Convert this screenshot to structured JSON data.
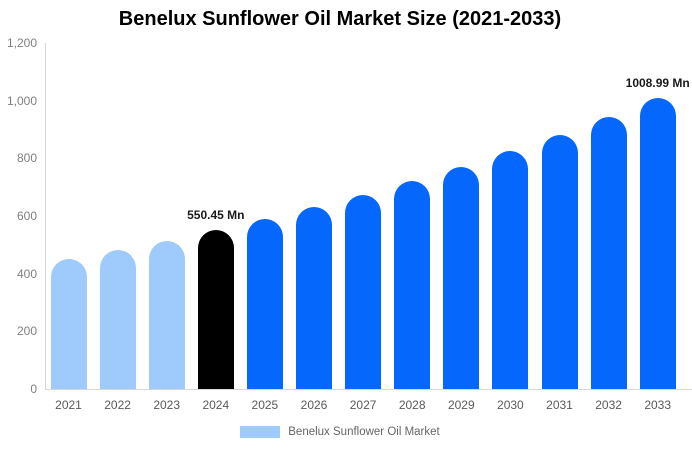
{
  "title": "Benelux Sunflower Oil Market Size (2021-2033)",
  "chart_data": {
    "type": "bar",
    "title": "Benelux Sunflower Oil Market Size (2021-2033)",
    "xlabel": "",
    "ylabel": "",
    "categories": [
      "2021",
      "2022",
      "2023",
      "2024",
      "2025",
      "2026",
      "2027",
      "2028",
      "2029",
      "2030",
      "2031",
      "2032",
      "2033"
    ],
    "values": [
      449.7,
      481.1,
      514.6,
      550.45,
      588.8,
      629.8,
      673.7,
      720.7,
      770.9,
      824.6,
      882.1,
      943.5,
      1008.99
    ],
    "ylim": [
      0,
      1200
    ],
    "y_ticks": [
      "0",
      "200",
      "400",
      "600",
      "800",
      "1,000",
      "1,200"
    ],
    "grid": false,
    "legend_position": "bottom",
    "bar_colors": [
      "#9ecbfb",
      "#9ecbfb",
      "#9ecbfb",
      "#000000",
      "#0667fc",
      "#0667fc",
      "#0667fc",
      "#0667fc",
      "#0667fc",
      "#0667fc",
      "#0667fc",
      "#0667fc",
      "#0667fc"
    ],
    "data_labels": [
      {
        "index": 3,
        "text": "550.45 Mn"
      },
      {
        "index": 12,
        "text": "1008.99 Mn"
      }
    ],
    "legend": {
      "label": "Benelux Sunflower Oil Market",
      "swatch_color": "#9ecbfb"
    }
  },
  "colors": {
    "bar_light_blue": "#9ecbfb",
    "bar_blue": "#0667fc",
    "bar_black": "#000000",
    "axis_line": "#d6d6d6",
    "y_axis_text": "#7f7f7f",
    "x_axis_text": "#5a5a5a",
    "legend_text": "#666666",
    "title_text": "#000000"
  }
}
